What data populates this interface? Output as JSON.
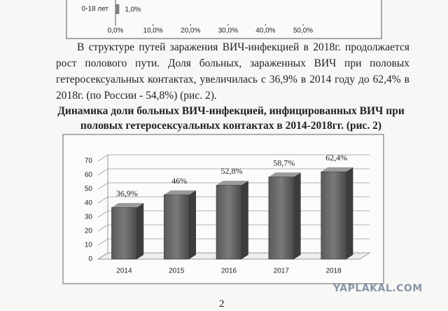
{
  "chart_data": [
    {
      "type": "hbar",
      "categories": [
        "0-18 лет"
      ],
      "values": [
        1.0
      ],
      "value_labels": [
        "1,0%"
      ],
      "color": "#808080",
      "xlim": [
        0,
        50
      ],
      "xticks": [
        {
          "value": 0,
          "label": "0,0%"
        },
        {
          "value": 10,
          "label": "10,0%"
        },
        {
          "value": 20,
          "label": "20,0%"
        },
        {
          "value": 30,
          "label": "30,0%"
        },
        {
          "value": 40,
          "label": "40,0%"
        },
        {
          "value": 50,
          "label": "50,0%"
        }
      ]
    },
    {
      "type": "bar3d",
      "title": "Динамика доли больных ВИЧ-инфекцией, инфицированных ВИЧ при половых гетеросексуальных контактах в 2014-2018гг. (рис. 2)",
      "categories": [
        "2014",
        "2015",
        "2016",
        "2017",
        "2018"
      ],
      "values": [
        36.9,
        46,
        52.8,
        58.7,
        62.4
      ],
      "value_labels": [
        "36,9%",
        "46%",
        "52,8%",
        "58,7%",
        "62,4%"
      ],
      "color": "#7a7a7a",
      "ylim": [
        0,
        70
      ],
      "yticks": [
        0,
        10,
        20,
        30,
        40,
        50,
        60,
        70
      ],
      "grid": true
    }
  ],
  "document": {
    "paragraph": "В структуре путей заражения ВИЧ-инфекцией в 2018г. продолжается рост полового пути. Доля больных, зараженных ВИЧ при половых гетеросексуальных контактах, увеличилась с 36,9% в 2014 году до 62,4% в 2018г. (по России - 54,8%) (рис. 2).",
    "watermark": "YAPLAKAL.COM",
    "page_number": "2"
  }
}
